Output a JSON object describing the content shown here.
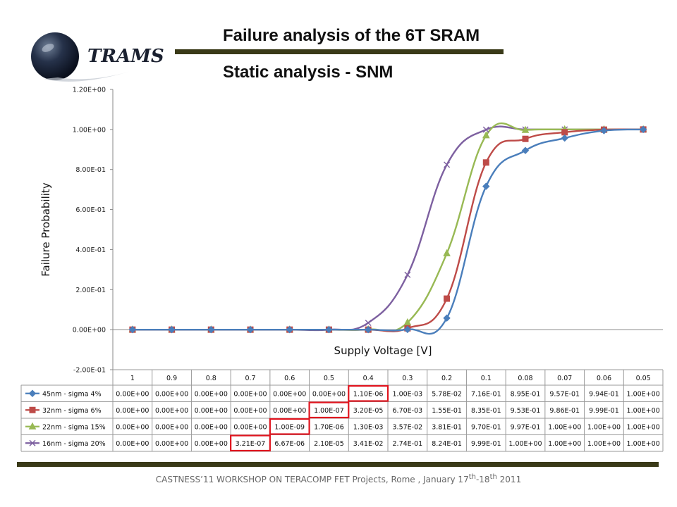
{
  "logo": {
    "text": "TRAMS"
  },
  "header": {
    "title": "Failure analysis of the 6T SRAM",
    "subtitle": "Static analysis - SNM"
  },
  "footer": {
    "prefix": "CASTNESS’11 WORKSHOP ON TERACOMP FET Projects, Rome , January 17",
    "sup1": "th",
    "mid": "-18",
    "sup2": "th",
    "suffix": " 2011"
  },
  "colors": {
    "bars": "#3a3a18",
    "highlight": "#e0141e"
  },
  "chart_data": {
    "type": "line",
    "xlabel": "Supply Voltage [V]",
    "ylabel": "Failure Probability",
    "ylim": [
      -0.2,
      1.2
    ],
    "ytick_labels": [
      "1.20E+00",
      "1.00E+00",
      "8.00E-01",
      "6.00E-01",
      "4.00E-01",
      "2.00E-01",
      "0.00E+00",
      "-2.00E-01"
    ],
    "grid": "horizontal major gridlines off",
    "legend": "data table below chart",
    "categories": [
      "1",
      "0.9",
      "0.8",
      "0.7",
      "0.6",
      "0.5",
      "0.4",
      "0.3",
      "0.2",
      "0.1",
      "0.08",
      "0.07",
      "0.06",
      "0.05"
    ],
    "series": [
      {
        "name": "45nm - sigma 4%",
        "color": "#4a7ebb",
        "marker": "diamond",
        "values": [
          0,
          0,
          0,
          0,
          0,
          0,
          1.1e-06,
          0.001,
          0.0578,
          0.716,
          0.895,
          0.957,
          0.994,
          1.0
        ],
        "labels": [
          "0.00E+00",
          "0.00E+00",
          "0.00E+00",
          "0.00E+00",
          "0.00E+00",
          "0.00E+00",
          "1.10E-06",
          "1.00E-03",
          "5.78E-02",
          "7.16E-01",
          "8.95E-01",
          "9.57E-01",
          "9.94E-01",
          "1.00E+00"
        ],
        "highlight_index": 6
      },
      {
        "name": "32nm - sigma 6%",
        "color": "#be4b48",
        "marker": "square",
        "values": [
          0,
          0,
          0,
          0,
          0,
          1e-07,
          3.2e-05,
          0.0067,
          0.155,
          0.835,
          0.953,
          0.986,
          0.999,
          1.0
        ],
        "labels": [
          "0.00E+00",
          "0.00E+00",
          "0.00E+00",
          "0.00E+00",
          "0.00E+00",
          "1.00E-07",
          "3.20E-05",
          "6.70E-03",
          "1.55E-01",
          "8.35E-01",
          "9.53E-01",
          "9.86E-01",
          "9.99E-01",
          "1.00E+00"
        ],
        "highlight_index": 5
      },
      {
        "name": "22nm - sigma 15%",
        "color": "#98b954",
        "marker": "triangle",
        "values": [
          0,
          0,
          0,
          0,
          1e-09,
          1.7e-06,
          0.0013,
          0.0357,
          0.381,
          0.97,
          0.997,
          1.0,
          1.0,
          1.0
        ],
        "labels": [
          "0.00E+00",
          "0.00E+00",
          "0.00E+00",
          "0.00E+00",
          "1.00E-09",
          "1.70E-06",
          "1.30E-03",
          "3.57E-02",
          "3.81E-01",
          "9.70E-01",
          "9.97E-01",
          "1.00E+00",
          "1.00E+00",
          "1.00E+00"
        ],
        "highlight_index": 4
      },
      {
        "name": "16nm - sigma 20%",
        "color": "#7d60a0",
        "marker": "x",
        "values": [
          0,
          0,
          0,
          3.21e-07,
          6.67e-06,
          2.1e-05,
          0.0341,
          0.274,
          0.824,
          0.999,
          1.0,
          1.0,
          1.0,
          1.0
        ],
        "labels": [
          "0.00E+00",
          "0.00E+00",
          "0.00E+00",
          "3.21E-07",
          "6.67E-06",
          "2.10E-05",
          "3.41E-02",
          "2.74E-01",
          "8.24E-01",
          "9.99E-01",
          "1.00E+00",
          "1.00E+00",
          "1.00E+00",
          "1.00E+00"
        ],
        "highlight_index": 3
      }
    ]
  }
}
